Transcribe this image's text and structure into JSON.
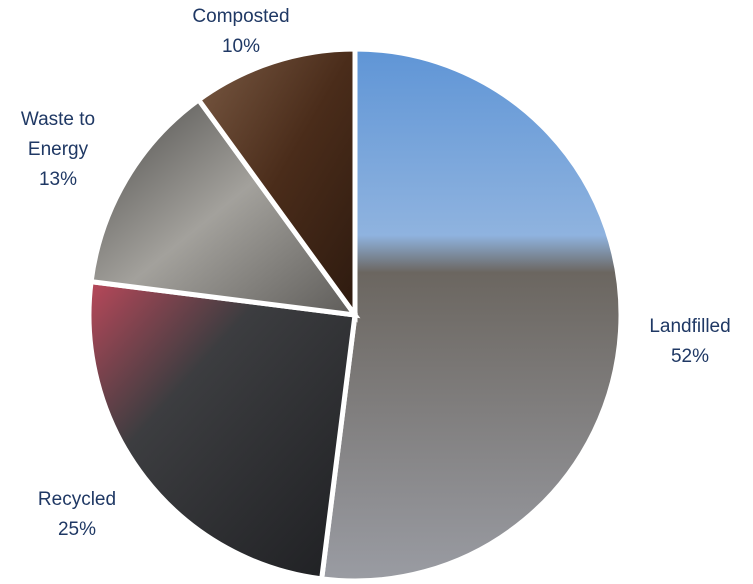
{
  "chart_data": {
    "type": "pie",
    "categories": [
      "Landfilled",
      "Recycled",
      "Waste to Energy",
      "Composted"
    ],
    "values": [
      52,
      25,
      13,
      10
    ],
    "value_labels": [
      "52%",
      "25%",
      "13%",
      "10%"
    ],
    "colors": [
      "#8d8f96",
      "#4a4b4f",
      "#7b7a78",
      "#5a3a24"
    ]
  }
}
